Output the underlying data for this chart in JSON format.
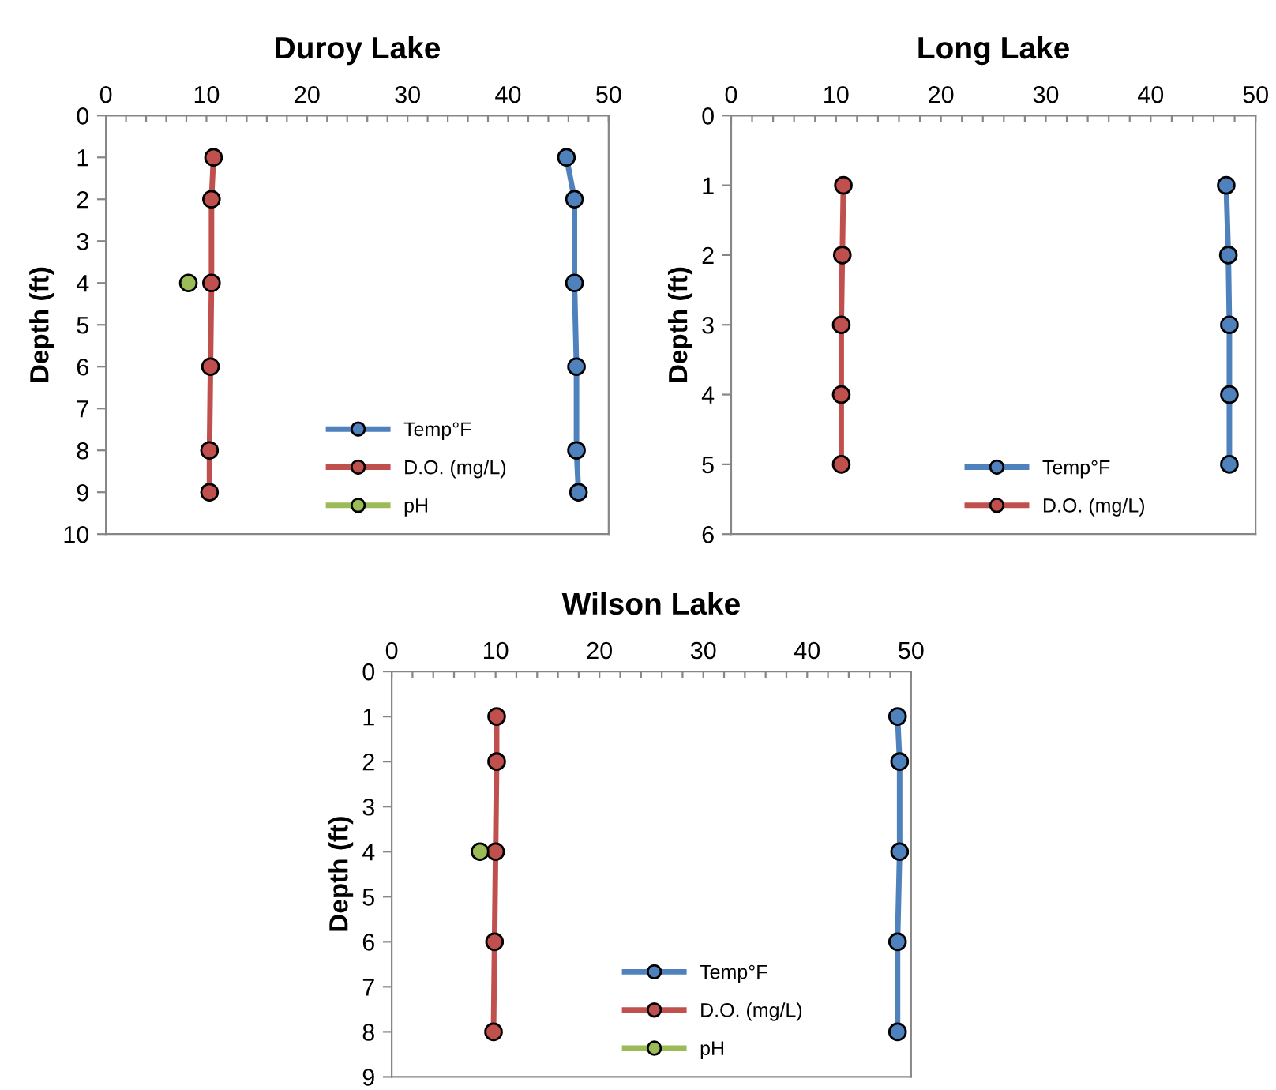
{
  "chart_data": [
    {
      "type": "line",
      "title": "Duroy Lake",
      "ylabel": "Depth (ft)",
      "marker": "circle",
      "legend": "bottom",
      "grid": false,
      "xlim": [
        0,
        50
      ],
      "xticks": [
        0,
        {
          "value": 2,
          "label": null
        },
        {
          "value": 4,
          "label": null
        },
        {
          "value": 6,
          "label": null
        },
        {
          "value": 8,
          "label": null
        },
        10,
        {
          "value": 12,
          "label": null
        },
        {
          "value": 14,
          "label": null
        },
        {
          "value": 16,
          "label": null
        },
        {
          "value": 18,
          "label": null
        },
        20,
        {
          "value": 22,
          "label": null
        },
        {
          "value": 24,
          "label": null
        },
        {
          "value": 26,
          "label": null
        },
        {
          "value": 28,
          "label": null
        },
        30,
        {
          "value": 32,
          "label": null
        },
        {
          "value": 34,
          "label": null
        },
        {
          "value": 36,
          "label": null
        },
        {
          "value": 38,
          "label": null
        },
        40,
        {
          "value": 42,
          "label": null
        },
        {
          "value": 44,
          "label": null
        },
        {
          "value": 46,
          "label": null
        },
        {
          "value": 48,
          "label": null
        },
        50
      ],
      "ylim": [
        10,
        0
      ],
      "yticks": [
        0,
        1,
        2,
        3,
        4,
        5,
        6,
        7,
        8,
        9,
        10
      ],
      "series": [
        {
          "name": "Temp°F",
          "color": "#4f81bd",
          "x": [
            45.8,
            46.6,
            46.6,
            46.8,
            46.8,
            47.0
          ],
          "values": [
            1,
            2,
            4,
            6,
            8,
            9
          ]
        },
        {
          "name": "D.O. (mg/L)",
          "color": "#c0504d",
          "x": [
            10.7,
            10.5,
            10.5,
            10.4,
            10.3,
            10.3
          ],
          "values": [
            1,
            2,
            4,
            6,
            8,
            9
          ]
        },
        {
          "name": "pH",
          "color": "#9bbb59",
          "x": [
            8.2
          ],
          "values": [
            4
          ]
        }
      ]
    },
    {
      "type": "line",
      "title": "Long Lake",
      "ylabel": "Depth (ft)",
      "marker": "circle",
      "legend": "bottom",
      "grid": false,
      "xlim": [
        0,
        50
      ],
      "xticks": [
        0,
        {
          "value": 2,
          "label": null
        },
        {
          "value": 4,
          "label": null
        },
        {
          "value": 6,
          "label": null
        },
        {
          "value": 8,
          "label": null
        },
        10,
        {
          "value": 12,
          "label": null
        },
        {
          "value": 14,
          "label": null
        },
        {
          "value": 16,
          "label": null
        },
        {
          "value": 18,
          "label": null
        },
        20,
        {
          "value": 22,
          "label": null
        },
        {
          "value": 24,
          "label": null
        },
        {
          "value": 26,
          "label": null
        },
        {
          "value": 28,
          "label": null
        },
        30,
        {
          "value": 32,
          "label": null
        },
        {
          "value": 34,
          "label": null
        },
        {
          "value": 36,
          "label": null
        },
        {
          "value": 38,
          "label": null
        },
        40,
        {
          "value": 42,
          "label": null
        },
        {
          "value": 44,
          "label": null
        },
        {
          "value": 46,
          "label": null
        },
        {
          "value": 48,
          "label": null
        },
        50
      ],
      "ylim": [
        6,
        0
      ],
      "yticks": [
        0,
        1,
        2,
        3,
        4,
        5,
        6
      ],
      "series": [
        {
          "name": "Temp°F",
          "color": "#4f81bd",
          "x": [
            47.2,
            47.4,
            47.5,
            47.5,
            47.5
          ],
          "values": [
            1,
            2,
            3,
            4,
            5
          ]
        },
        {
          "name": "D.O. (mg/L)",
          "color": "#c0504d",
          "x": [
            10.7,
            10.6,
            10.5,
            10.5,
            10.5
          ],
          "values": [
            1,
            2,
            3,
            4,
            5
          ]
        }
      ]
    },
    {
      "type": "line",
      "title": "Wilson Lake",
      "ylabel": "Depth (ft)",
      "marker": "circle",
      "legend": "bottom",
      "grid": false,
      "xlim": [
        0,
        50
      ],
      "xticks": [
        0,
        {
          "value": 2,
          "label": null
        },
        {
          "value": 4,
          "label": null
        },
        {
          "value": 6,
          "label": null
        },
        {
          "value": 8,
          "label": null
        },
        10,
        {
          "value": 12,
          "label": null
        },
        {
          "value": 14,
          "label": null
        },
        {
          "value": 16,
          "label": null
        },
        {
          "value": 18,
          "label": null
        },
        20,
        {
          "value": 22,
          "label": null
        },
        {
          "value": 24,
          "label": null
        },
        {
          "value": 26,
          "label": null
        },
        {
          "value": 28,
          "label": null
        },
        30,
        {
          "value": 32,
          "label": null
        },
        {
          "value": 34,
          "label": null
        },
        {
          "value": 36,
          "label": null
        },
        {
          "value": 38,
          "label": null
        },
        40,
        {
          "value": 42,
          "label": null
        },
        {
          "value": 44,
          "label": null
        },
        {
          "value": 46,
          "label": null
        },
        {
          "value": 48,
          "label": null
        },
        50
      ],
      "ylim": [
        9,
        0
      ],
      "yticks": [
        0,
        1,
        2,
        3,
        4,
        5,
        6,
        7,
        8,
        9
      ],
      "series": [
        {
          "name": "Temp°F",
          "color": "#4f81bd",
          "x": [
            48.7,
            48.9,
            48.9,
            48.7,
            48.7
          ],
          "values": [
            1,
            2,
            4,
            6,
            8
          ]
        },
        {
          "name": "D.O. (mg/L)",
          "color": "#c0504d",
          "x": [
            10.1,
            10.1,
            10.0,
            9.9,
            9.8
          ],
          "values": [
            1,
            2,
            4,
            6,
            8
          ]
        },
        {
          "name": "pH",
          "color": "#9bbb59",
          "x": [
            8.5
          ],
          "values": [
            4
          ]
        }
      ]
    }
  ]
}
